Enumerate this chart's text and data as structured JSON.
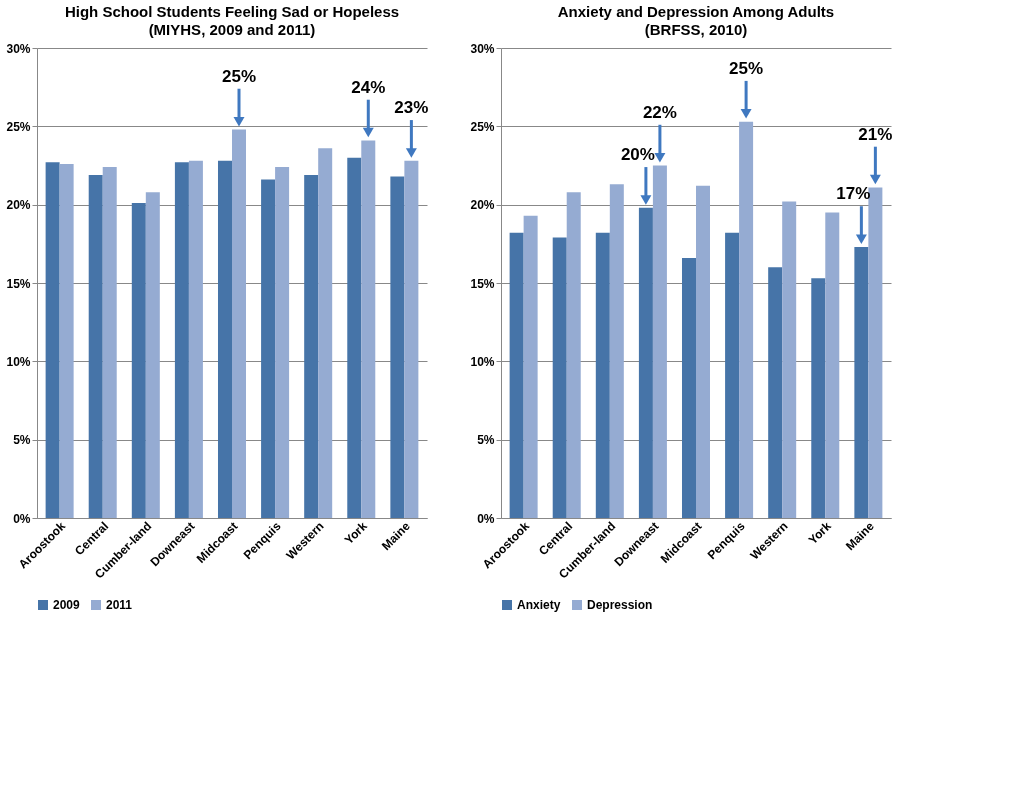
{
  "chart_data": [
    {
      "type": "bar",
      "title": "High School Students Feeling Sad or Hopeless",
      "subtitle": "(MIYHS, 2009 and 2011)",
      "categories": [
        "Aroostook",
        "Central",
        "Cumber-land",
        "Downeast",
        "Midcoast",
        "Penquis",
        "Western",
        "York",
        "Maine"
      ],
      "series": [
        {
          "name": "2009",
          "color": "#4674a8",
          "values": [
            22.7,
            21.9,
            20.1,
            22.7,
            22.8,
            21.6,
            21.9,
            23.0,
            21.8
          ]
        },
        {
          "name": "2011",
          "color": "#95abd2",
          "values": [
            22.6,
            22.4,
            20.8,
            22.8,
            24.8,
            22.4,
            23.6,
            24.1,
            22.8
          ]
        }
      ],
      "ylim": [
        0,
        30
      ],
      "yticks": [
        {
          "value": 0,
          "label": "0%"
        },
        {
          "value": 5,
          "label": "5%"
        },
        {
          "value": 10,
          "label": "10%"
        },
        {
          "value": 15,
          "label": "15%"
        },
        {
          "value": 20,
          "label": "20%"
        },
        {
          "value": 25,
          "label": "25%"
        },
        {
          "value": 30,
          "label": "30%"
        }
      ],
      "annotations": [
        {
          "text": "25%",
          "x": "Midcoast",
          "y": 24.8
        },
        {
          "text": "24%",
          "x": "York",
          "y": 24.1
        },
        {
          "text": "23%",
          "x": "Maine",
          "y": 22.8
        }
      ],
      "grid": "y",
      "legend": "bottom"
    },
    {
      "type": "bar",
      "title": "Anxiety and Depression Among Adults",
      "subtitle": "(BRFSS, 2010)",
      "categories": [
        "Aroostook",
        "Central",
        "Cumber-land",
        "Downeast",
        "Midcoast",
        "Penquis",
        "Western",
        "York",
        "Maine"
      ],
      "series": [
        {
          "name": "Anxiety",
          "color": "#4674a8",
          "values": [
            18.2,
            17.9,
            18.2,
            19.8,
            16.6,
            18.2,
            16.0,
            15.3,
            17.3
          ]
        },
        {
          "name": "Depression",
          "color": "#95abd2",
          "values": [
            19.3,
            20.8,
            21.3,
            22.5,
            21.2,
            25.3,
            20.2,
            19.5,
            21.1
          ]
        }
      ],
      "ylim": [
        0,
        30
      ],
      "yticks": [
        {
          "value": 0,
          "label": "0%"
        },
        {
          "value": 5,
          "label": "5%"
        },
        {
          "value": 10,
          "label": "10%"
        },
        {
          "value": 15,
          "label": "15%"
        },
        {
          "value": 20,
          "label": "20%"
        },
        {
          "value": 25,
          "label": "25%"
        },
        {
          "value": 30,
          "label": "30%"
        }
      ],
      "annotations": [
        {
          "text": "20%",
          "x": "Downeast",
          "y": 19.8
        },
        {
          "text": "22%",
          "x": "Downeast",
          "y": 22.5
        },
        {
          "text": "25%",
          "x": "Penquis",
          "y": 25.3
        },
        {
          "text": "17%",
          "x": "Maine",
          "y": 17.3
        },
        {
          "text": "21%",
          "x": "Maine",
          "y": 21.1
        }
      ],
      "grid": "y",
      "legend": "bottom"
    }
  ]
}
